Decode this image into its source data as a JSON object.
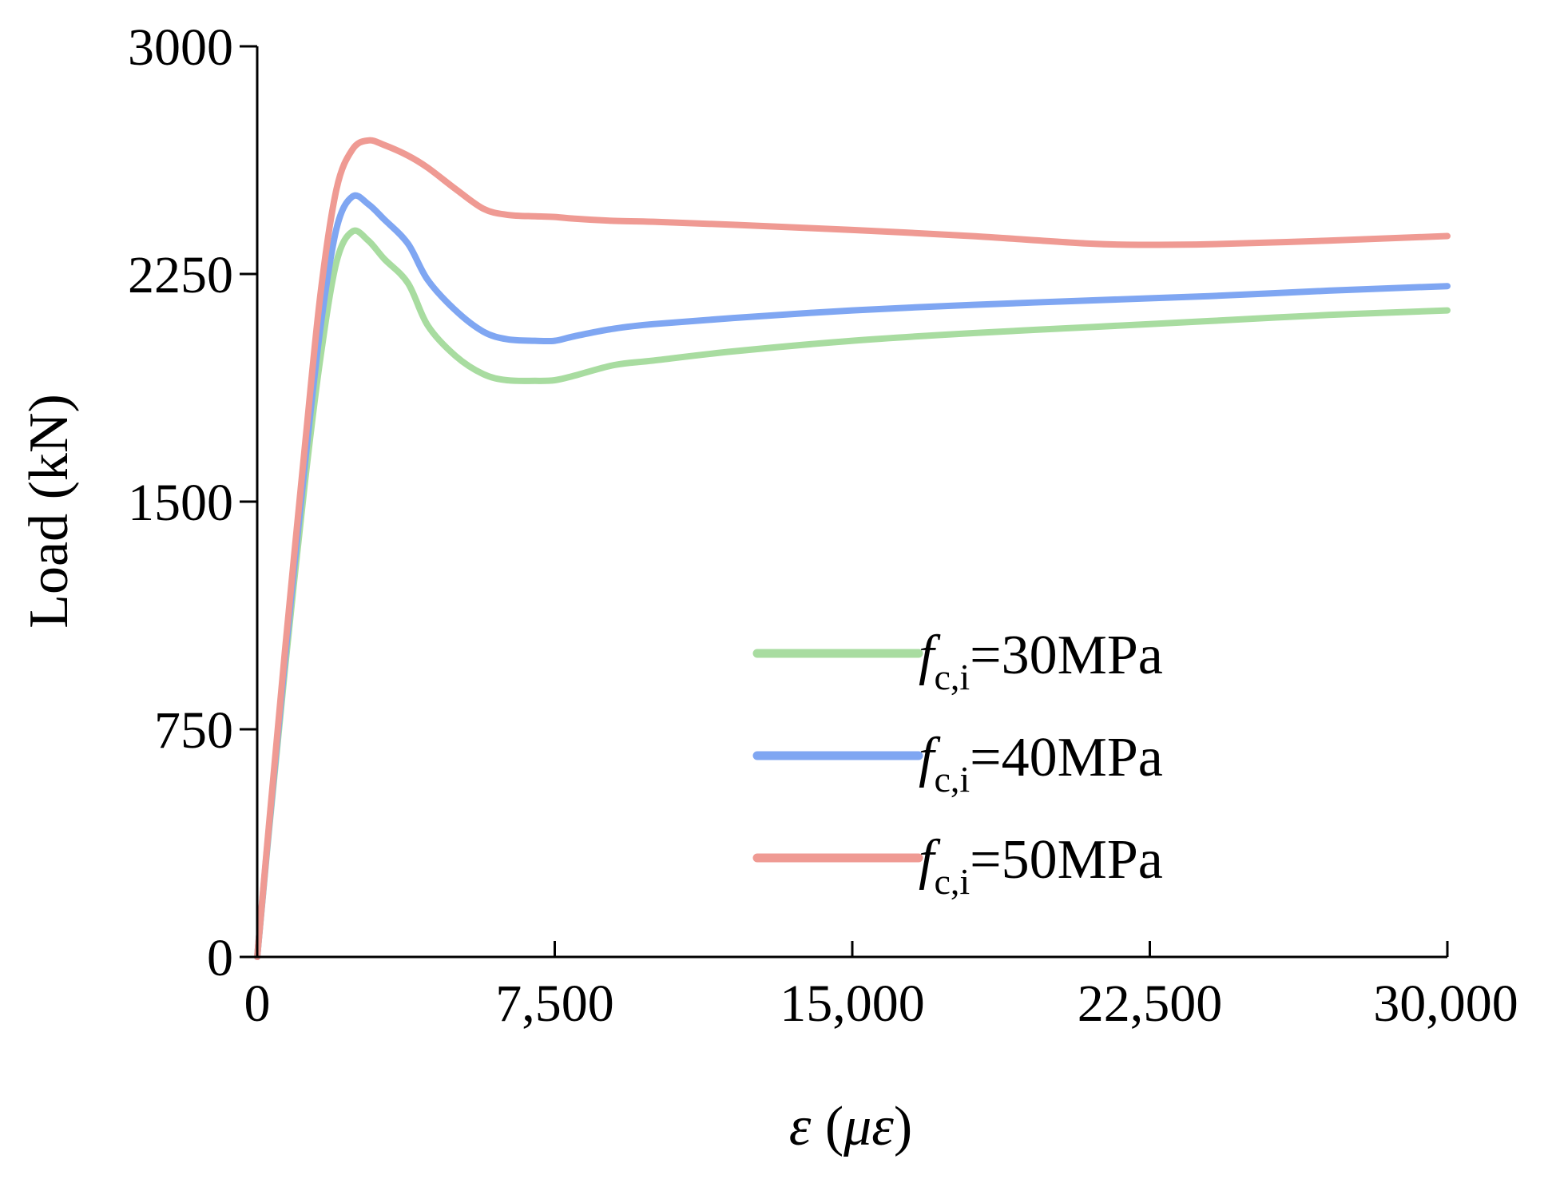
{
  "chart_data": {
    "type": "line",
    "title": "",
    "xlabel": "ε (με)",
    "xlabel_parts": {
      "var": "ε",
      "open": " (",
      "unit": "με",
      "close": ")"
    },
    "ylabel": "Load (kN)",
    "xlim": [
      0,
      30000
    ],
    "ylim": [
      0,
      3000
    ],
    "xticks": [
      0,
      7500,
      15000,
      22500,
      30000
    ],
    "xtick_labels": [
      "0",
      "7,500",
      "15,000",
      "22,500",
      "30,000"
    ],
    "yticks": [
      0,
      750,
      1500,
      2250,
      3000
    ],
    "ytick_labels": [
      "0",
      "750",
      "1500",
      "2250",
      "3000"
    ],
    "grid": false,
    "legend_position": "lower-right",
    "series": [
      {
        "name": "fc,i=30MPa",
        "legend": {
          "f": "f",
          "sub": "c,i",
          "rest": "=30MPa"
        },
        "color": "#a8dca0",
        "x": [
          0,
          300,
          700,
          1200,
          1600,
          2000,
          2400,
          2800,
          3200,
          3800,
          4300,
          5000,
          5700,
          6300,
          7000,
          7500,
          8000,
          9000,
          10000,
          12000,
          15000,
          18000,
          21000,
          24000,
          27000,
          30000
        ],
        "y": [
          0,
          420,
          950,
          1560,
          1980,
          2290,
          2390,
          2360,
          2300,
          2220,
          2080,
          1980,
          1920,
          1900,
          1898,
          1900,
          1915,
          1950,
          1965,
          1995,
          2030,
          2055,
          2075,
          2095,
          2115,
          2130
        ]
      },
      {
        "name": "fc,i=40MPa",
        "legend": {
          "f": "f",
          "sub": "c,i",
          "rest": "=40MPa"
        },
        "color": "#7fa6f2",
        "x": [
          0,
          300,
          700,
          1200,
          1600,
          2000,
          2400,
          2800,
          3200,
          3800,
          4300,
          5000,
          5700,
          6300,
          7000,
          7500,
          8000,
          9000,
          10000,
          12000,
          15000,
          18000,
          21000,
          24000,
          27000,
          30000
        ],
        "y": [
          0,
          430,
          980,
          1620,
          2080,
          2400,
          2505,
          2480,
          2430,
          2350,
          2230,
          2130,
          2060,
          2035,
          2030,
          2030,
          2045,
          2070,
          2085,
          2105,
          2130,
          2148,
          2163,
          2177,
          2195,
          2210
        ]
      },
      {
        "name": "fc,i=50MPa",
        "legend": {
          "f": "f",
          "sub": "c,i",
          "rest": "=50MPa"
        },
        "color": "#ef9a93",
        "x": [
          0,
          300,
          700,
          1200,
          1600,
          2000,
          2400,
          2800,
          3200,
          3800,
          4300,
          5000,
          5700,
          6300,
          7000,
          7500,
          8000,
          9000,
          10000,
          12000,
          15000,
          18000,
          21000,
          22500,
          24000,
          27000,
          30000
        ],
        "y": [
          0,
          440,
          1010,
          1680,
          2190,
          2530,
          2660,
          2690,
          2675,
          2640,
          2600,
          2530,
          2465,
          2445,
          2440,
          2438,
          2432,
          2425,
          2422,
          2412,
          2395,
          2375,
          2350,
          2346,
          2348,
          2360,
          2375
        ]
      }
    ]
  }
}
